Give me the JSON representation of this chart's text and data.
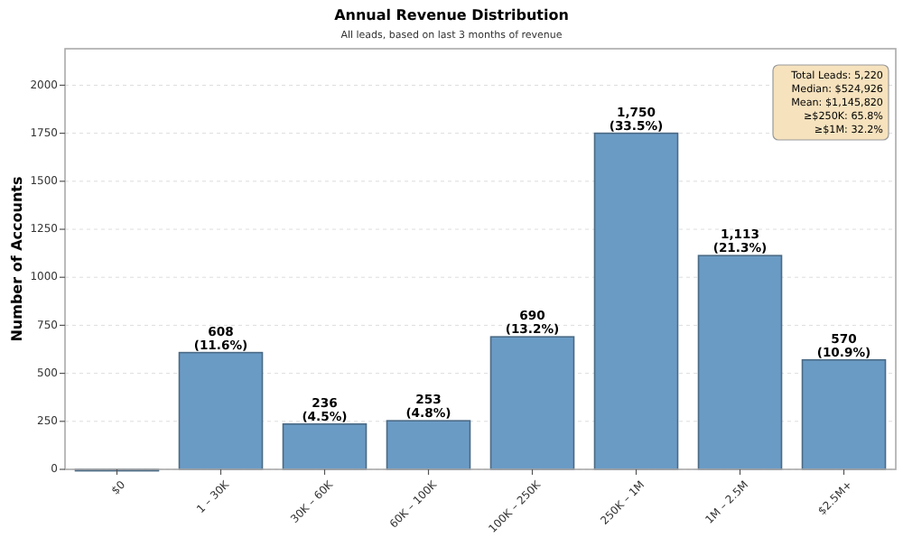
{
  "chart_data": {
    "type": "bar",
    "title": "Annual Revenue Distribution",
    "subtitle": "All leads, based on last 3 months of revenue",
    "ylabel": "Number of Accounts",
    "categories": [
      "$0",
      "1 – 30K",
      "30K – 60K",
      "60K – 100K",
      "100K – 250K",
      "250K – 1M",
      "1M – 2.5M",
      "$2.5M+"
    ],
    "values": [
      0,
      608,
      236,
      253,
      690,
      1750,
      1113,
      570
    ],
    "value_labels": [
      null,
      "608\n(11.6%)",
      "236\n(4.5%)",
      "253\n(4.8%)",
      "690\n(13.2%)",
      "1,750\n(33.5%)",
      "1,113\n(21.3%)",
      "570\n(10.9%)"
    ],
    "color": "#6a9bc5",
    "ylim": [
      0,
      2190
    ],
    "yticks": [
      0,
      250,
      500,
      750,
      1000,
      1250,
      1500,
      1750,
      2000
    ],
    "grid": "y",
    "annotations": [
      "Total Leads: 5,220\nMedian: $524,926\nMean: $1,145,820\n≥$250K: 65.8%\n≥$1M: 32.2%"
    ]
  }
}
